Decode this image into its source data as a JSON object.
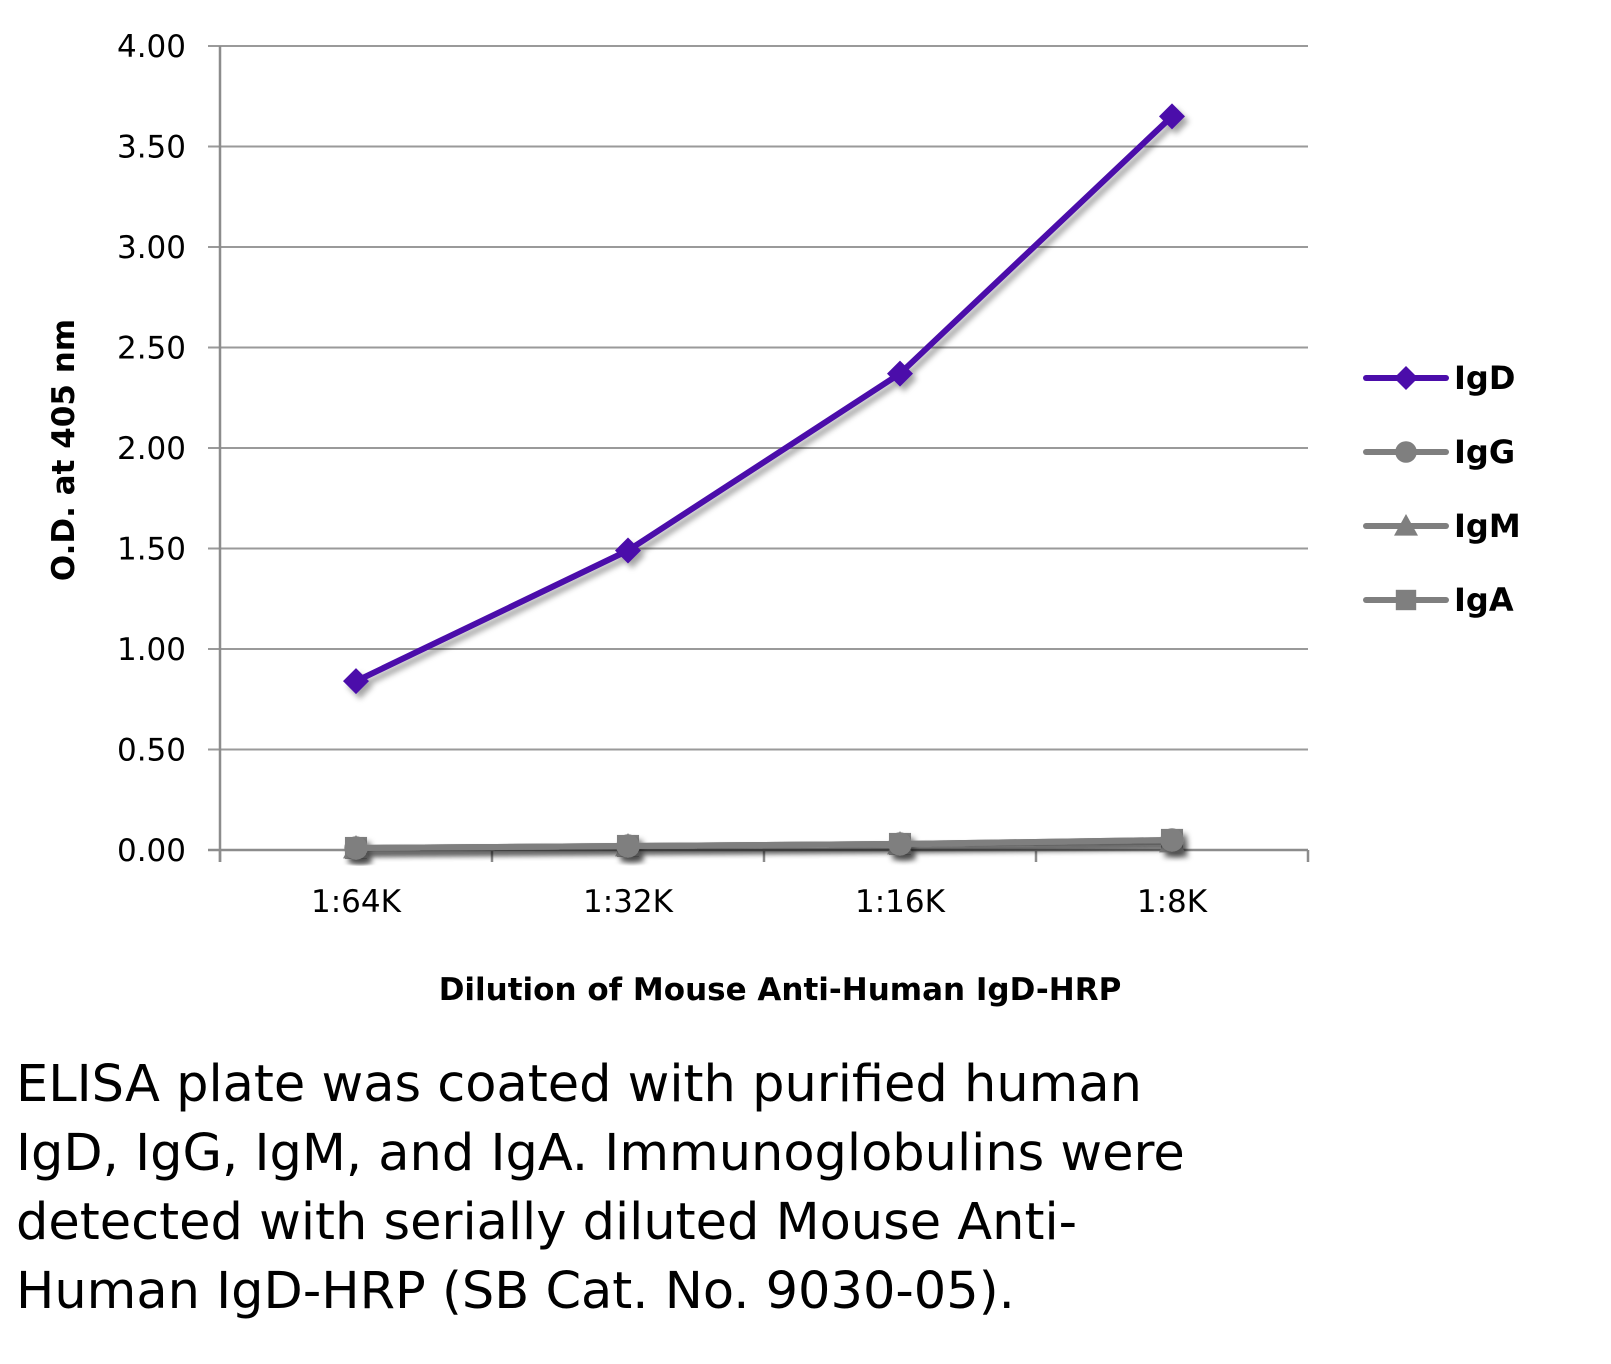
{
  "chart_data": {
    "type": "line",
    "title": "",
    "xlabel": "Dilution of Mouse Anti-Human IgD-HRP",
    "ylabel": "O.D. at 405 nm",
    "categories": [
      "1:64K",
      "1:32K",
      "1:16K",
      "1:8K"
    ],
    "ylim": [
      0,
      4
    ],
    "yticks": [
      "0.00",
      "0.50",
      "1.00",
      "1.50",
      "2.00",
      "2.50",
      "3.00",
      "3.50",
      "4.00"
    ],
    "ytick_values": [
      0,
      0.5,
      1,
      1.5,
      2,
      2.5,
      3,
      3.5,
      4
    ],
    "grid": true,
    "legend_position": "right",
    "series": [
      {
        "name": "IgD",
        "marker": "diamond",
        "color": "#4B0DAA",
        "values": [
          0.84,
          1.49,
          2.37,
          3.65
        ]
      },
      {
        "name": "IgG",
        "marker": "circle",
        "color": "#7F7F7F",
        "values": [
          0.01,
          0.02,
          0.03,
          0.05
        ]
      },
      {
        "name": "IgM",
        "marker": "triangle",
        "color": "#7F7F7F",
        "values": [
          0.01,
          0.02,
          0.03,
          0.04
        ]
      },
      {
        "name": "IgA",
        "marker": "square",
        "color": "#7F7F7F",
        "values": [
          0.01,
          0.02,
          0.03,
          0.05
        ]
      }
    ]
  },
  "caption": {
    "lines": [
      "ELISA plate was coated with purified human",
      "IgD, IgG, IgM, and IgA.  Immunoglobulins were",
      "detected with serially diluted Mouse Anti-",
      "Human IgD-HRP (SB Cat. No. 9030-05)."
    ]
  }
}
